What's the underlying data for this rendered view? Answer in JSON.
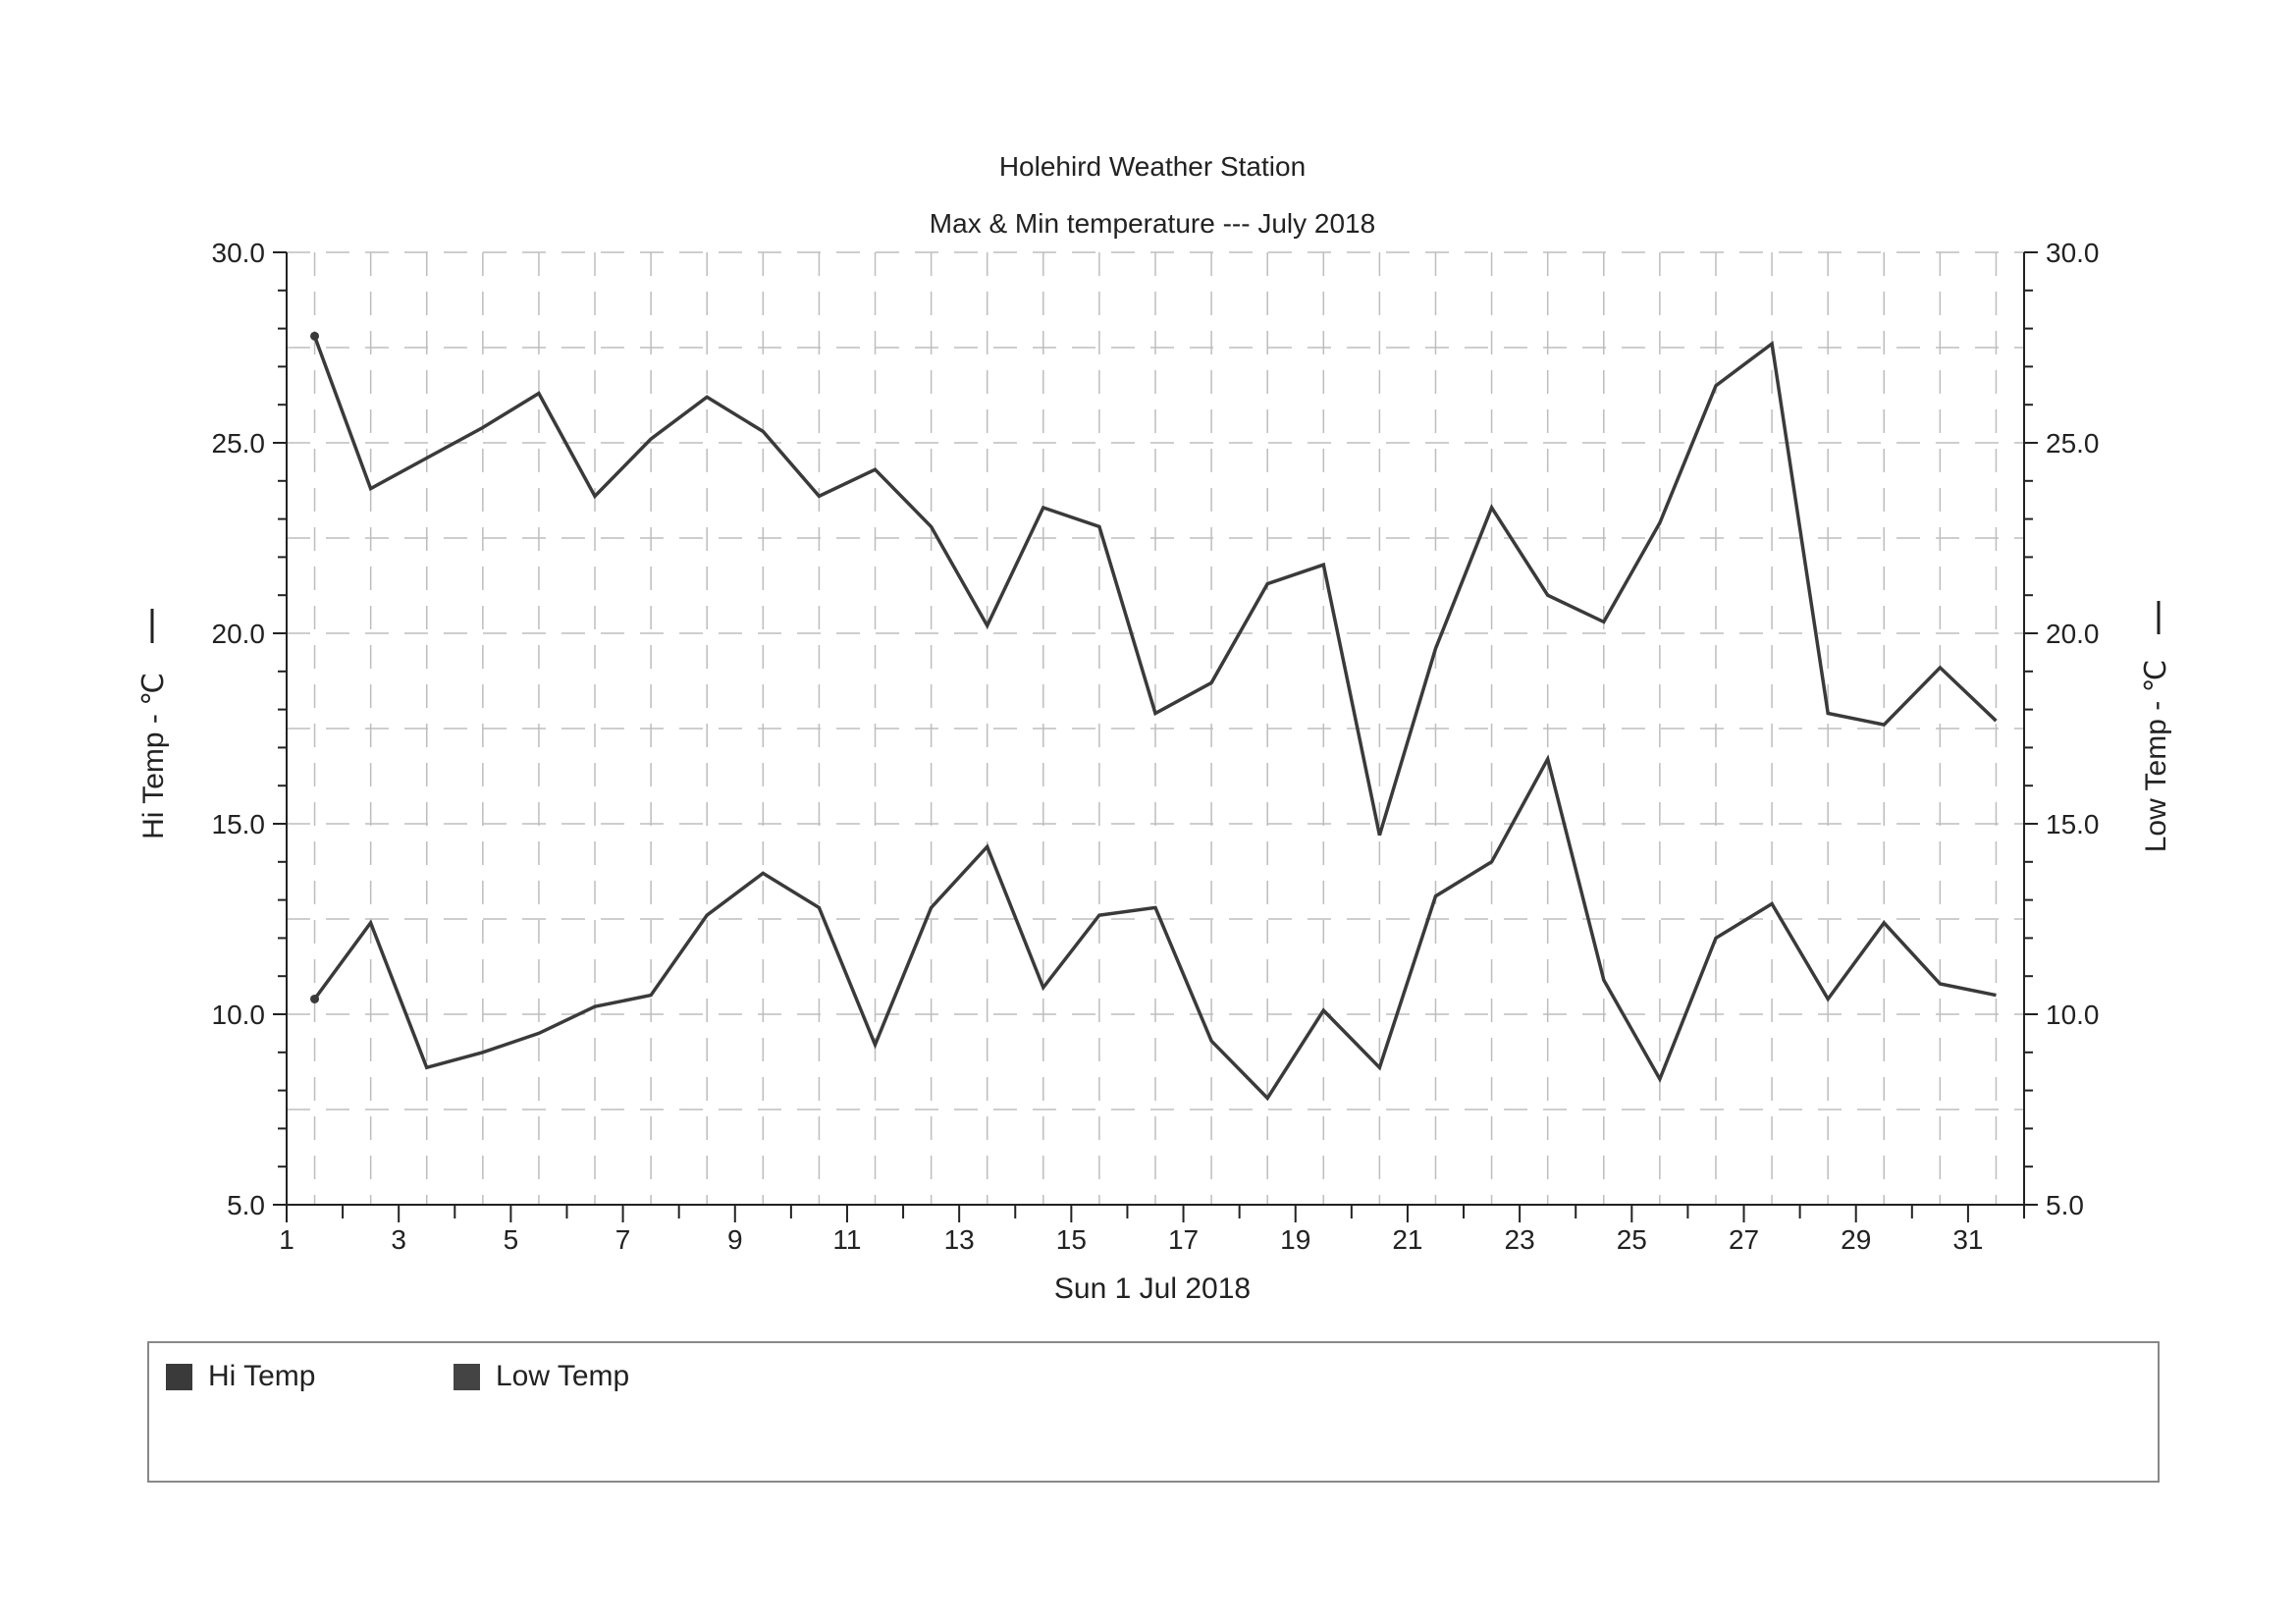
{
  "colors": {
    "line": "#3a3a3a",
    "grid": "#bdbdbd",
    "axis": "#222222"
  },
  "legend": {
    "items": [
      {
        "label": "Hi Temp",
        "color": "#3a3a3a"
      },
      {
        "label": "Low Temp",
        "color": "#444444"
      }
    ]
  },
  "chart_data": {
    "type": "line",
    "title": "Holehird Weather Station",
    "subtitle": "Max & Min temperature --- July 2018",
    "xlabel": "Sun 1 Jul 2018",
    "ylabel_left": "Hi Temp - ℃",
    "ylabel_right": "Low Temp - ℃",
    "ylim": [
      5.0,
      30.0
    ],
    "y_ticks": [
      "5.0",
      "10.0",
      "15.0",
      "20.0",
      "25.0",
      "30.0"
    ],
    "x_ticks": [
      "1",
      "3",
      "5",
      "7",
      "9",
      "11",
      "13",
      "15",
      "17",
      "19",
      "21",
      "23",
      "25",
      "27",
      "29",
      "31"
    ],
    "x": [
      1,
      2,
      3,
      4,
      5,
      6,
      7,
      8,
      9,
      10,
      11,
      12,
      13,
      14,
      15,
      16,
      17,
      18,
      19,
      20,
      21,
      22,
      23,
      24,
      25,
      26,
      27,
      28,
      29,
      30,
      31
    ],
    "grid": true,
    "legend_position": "bottom",
    "series": [
      {
        "name": "Hi Temp",
        "values": [
          27.8,
          23.8,
          24.6,
          25.4,
          26.3,
          23.6,
          25.1,
          26.2,
          25.3,
          23.6,
          24.3,
          22.8,
          20.2,
          23.3,
          22.8,
          17.9,
          18.7,
          21.3,
          21.8,
          14.7,
          19.6,
          23.3,
          21.0,
          20.3,
          22.9,
          26.5,
          27.6,
          17.9,
          17.6,
          19.1,
          17.7
        ]
      },
      {
        "name": "Low Temp",
        "values": [
          10.4,
          12.4,
          8.6,
          9.0,
          9.5,
          10.2,
          10.5,
          12.6,
          13.7,
          12.8,
          9.2,
          12.8,
          14.4,
          10.7,
          12.6,
          12.8,
          9.3,
          7.8,
          10.1,
          8.6,
          13.1,
          14.0,
          16.7,
          10.9,
          8.3,
          12.0,
          12.9,
          10.4,
          12.4,
          10.8,
          10.5
        ]
      }
    ]
  }
}
